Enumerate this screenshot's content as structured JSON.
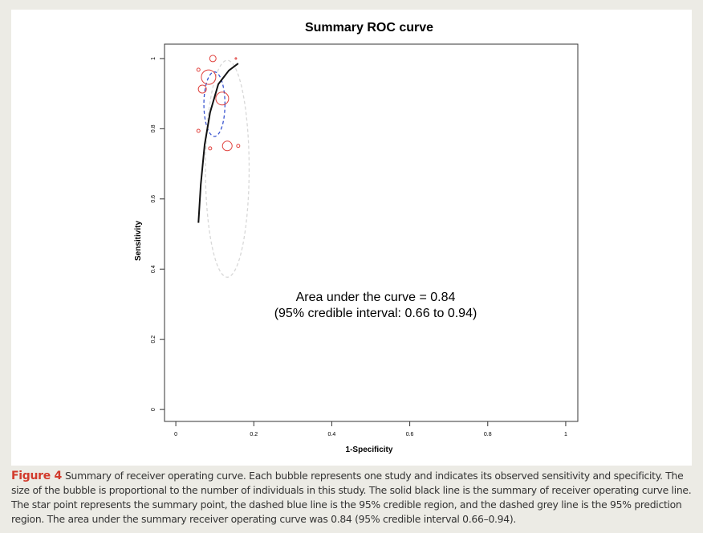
{
  "chart_data": {
    "type": "bubble",
    "title": "Summary ROC curve",
    "x_label": "1-Specificity",
    "y_label": "Sensitivity",
    "xlim": [
      -0.029,
      1.031
    ],
    "ylim": [
      -0.034,
      1.041
    ],
    "xticks": [
      0,
      0.2,
      0.4,
      0.6,
      0.8,
      1
    ],
    "yticks": [
      0,
      0.2,
      0.4,
      0.6,
      0.8,
      1
    ],
    "series": [
      {
        "type": "bubble",
        "color": "#e0403c",
        "x": [
          0.095,
          0.154,
          0.058,
          0.084,
          0.068,
          0.119,
          0.058,
          0.088,
          0.132,
          0.16
        ],
        "values": [
          1.0,
          1.0,
          0.968,
          0.947,
          0.913,
          0.886,
          0.794,
          0.744,
          0.751,
          0.751
        ],
        "sizes": [
          4,
          1,
          2,
          9,
          5,
          8,
          2,
          2,
          6,
          2
        ]
      },
      {
        "type": "line",
        "color": "#111111",
        "x": [
          0.058,
          0.064,
          0.074,
          0.088,
          0.109,
          0.136,
          0.16
        ],
        "values": [
          0.532,
          0.641,
          0.755,
          0.847,
          0.927,
          0.966,
          0.986
        ]
      }
    ],
    "regions": [
      {
        "color": "#3a55d0",
        "cx": 0.099,
        "cy": 0.87,
        "rx": 0.027,
        "ry": 0.092
      },
      {
        "color": "#d8d8d8",
        "cx": 0.132,
        "cy": 0.686,
        "rx": 0.056,
        "ry": 0.309
      }
    ],
    "annotation": [
      "Area under the curve = 0.84",
      "(95% credible interval: 0.66 to 0.94)"
    ]
  },
  "caption": {
    "label": "Figure 4",
    "text": "Summary of receiver operating curve. Each bubble represents one study and indicates its observed sensitivity and specificity. The size of the bubble is proportional to the number of individuals in this study. The solid black line is the summary of receiver operating curve line. The star point represents the summary point, the dashed blue line is the 95% credible region, and the dashed grey line is the 95% prediction region. The area under the summary receiver operating curve was 0.84 (95% credible interval 0.66–0.94)."
  }
}
